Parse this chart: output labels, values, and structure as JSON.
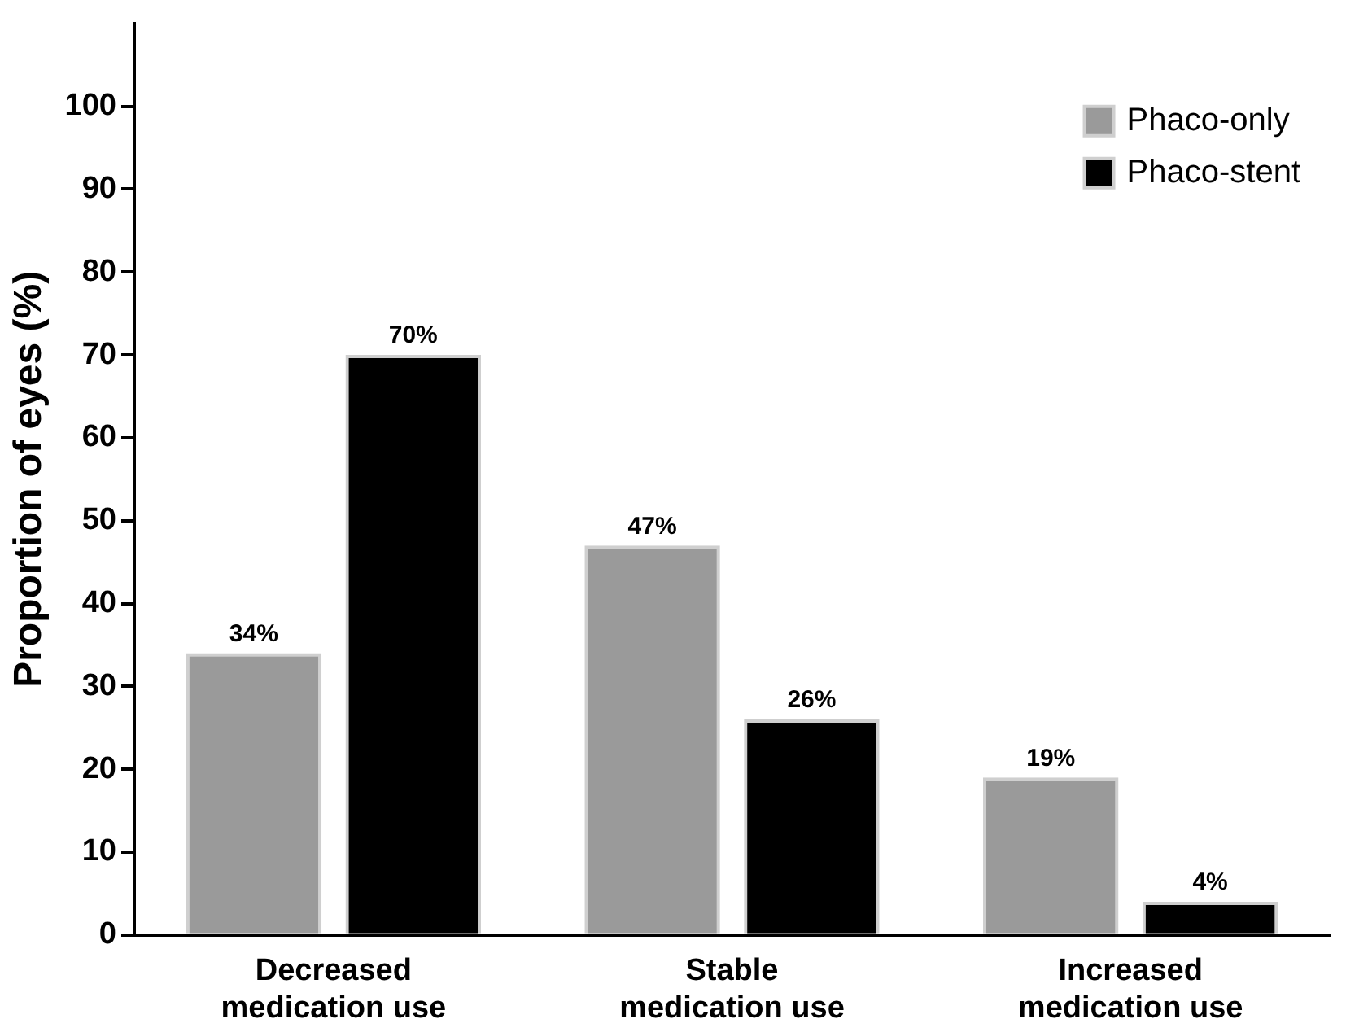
{
  "chart_data": {
    "type": "bar",
    "ylabel": "Proportion of eyes (%)",
    "categories": [
      "Decreased medication use",
      "Stable medication use",
      "Increased medication use"
    ],
    "series": [
      {
        "name": "Phaco-only",
        "color": "#9a9a9a",
        "values": [
          34,
          47,
          19
        ],
        "value_labels": [
          "34%",
          "47%",
          "19%"
        ]
      },
      {
        "name": "Phaco-stent",
        "color": "#000000",
        "values": [
          70,
          26,
          4
        ],
        "value_labels": [
          "70%",
          "26%",
          "4%"
        ]
      }
    ],
    "ylim": [
      0,
      110
    ],
    "yticks": [
      0,
      10,
      20,
      30,
      40,
      50,
      60,
      70,
      80,
      90,
      100
    ],
    "grid": false,
    "legend": "top right"
  }
}
